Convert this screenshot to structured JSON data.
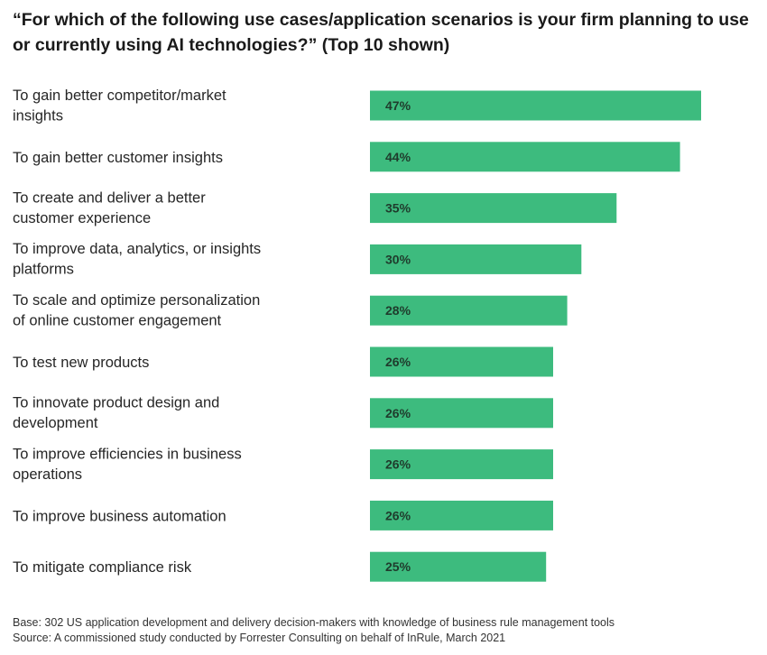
{
  "chart_data": {
    "type": "bar",
    "orientation": "horizontal",
    "title": "“For which of the following use cases/application scenarios is your firm planning to use or currently using AI technologies?” (Top 10 shown)",
    "categories": [
      [
        "To gain better competitor/market",
        "insights"
      ],
      [
        "To gain better customer insights"
      ],
      [
        "To create and deliver a better",
        "customer experience"
      ],
      [
        "To improve data, analytics, or insights",
        "platforms"
      ],
      [
        "To scale and optimize personalization",
        "of online customer engagement"
      ],
      [
        "To test new products"
      ],
      [
        "To innovate product design and",
        "development"
      ],
      [
        "To improve efficiencies in business",
        "operations"
      ],
      [
        "To improve business automation"
      ],
      [
        "To mitigate compliance risk"
      ]
    ],
    "values": [
      47,
      44,
      35,
      30,
      28,
      26,
      26,
      26,
      26,
      25
    ],
    "value_labels": [
      "47%",
      "44%",
      "35%",
      "30%",
      "28%",
      "26%",
      "26%",
      "26%",
      "26%",
      "25%"
    ],
    "unit": "%",
    "bar_color": "#3dbb7e",
    "xlim": [
      0,
      50
    ],
    "grid": false,
    "legend": "none"
  },
  "footnotes": {
    "base": "Base: 302 US application development and delivery decision-makers with knowledge of business rule management tools",
    "source": "Source: A commissioned study conducted by Forrester Consulting on behalf of InRule, March 2021"
  }
}
